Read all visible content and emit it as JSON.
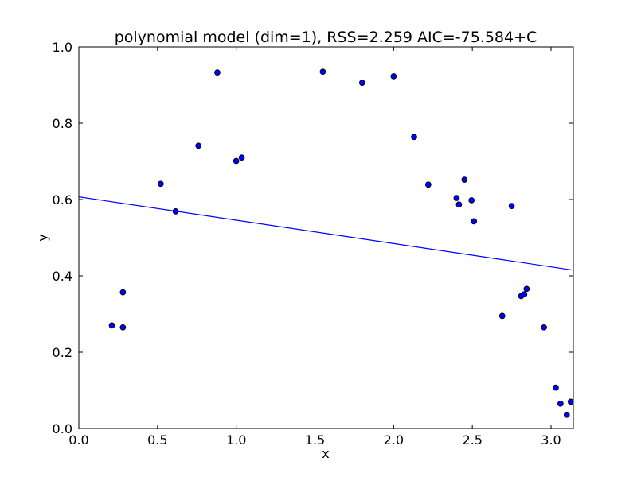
{
  "chart_data": {
    "type": "scatter",
    "title": "polynomial model (dim=1), RSS=2.259 AIC=-75.584+C",
    "xlabel": "x",
    "ylabel": "y",
    "xlim": [
      0.0,
      3.1416
    ],
    "ylim": [
      0.0,
      1.0
    ],
    "xticks": [
      0.0,
      0.5,
      1.0,
      1.5,
      2.0,
      2.5,
      3.0
    ],
    "xtick_labels": [
      "0.0",
      "0.5",
      "1.0",
      "1.5",
      "2.0",
      "2.5",
      "3.0"
    ],
    "yticks": [
      0.0,
      0.2,
      0.4,
      0.6,
      0.8,
      1.0
    ],
    "ytick_labels": [
      "0.0",
      "0.2",
      "0.4",
      "0.6",
      "0.8",
      "1.0"
    ],
    "grid": false,
    "colors": {
      "points": "#0000ff",
      "line": "#0000ff",
      "point_edge": "#000000"
    },
    "points": [
      {
        "x": 0.21,
        "y": 0.27
      },
      {
        "x": 0.28,
        "y": 0.265
      },
      {
        "x": 0.28,
        "y": 0.357
      },
      {
        "x": 0.52,
        "y": 0.641
      },
      {
        "x": 0.615,
        "y": 0.569
      },
      {
        "x": 0.76,
        "y": 0.741
      },
      {
        "x": 0.88,
        "y": 0.933
      },
      {
        "x": 1.0,
        "y": 0.701
      },
      {
        "x": 1.035,
        "y": 0.71
      },
      {
        "x": 1.55,
        "y": 0.935
      },
      {
        "x": 1.8,
        "y": 0.906
      },
      {
        "x": 2.0,
        "y": 0.923
      },
      {
        "x": 2.13,
        "y": 0.764
      },
      {
        "x": 2.22,
        "y": 0.639
      },
      {
        "x": 2.4,
        "y": 0.604
      },
      {
        "x": 2.415,
        "y": 0.587
      },
      {
        "x": 2.45,
        "y": 0.652
      },
      {
        "x": 2.495,
        "y": 0.598
      },
      {
        "x": 2.51,
        "y": 0.543
      },
      {
        "x": 2.69,
        "y": 0.295
      },
      {
        "x": 2.75,
        "y": 0.583
      },
      {
        "x": 2.81,
        "y": 0.347
      },
      {
        "x": 2.83,
        "y": 0.352
      },
      {
        "x": 2.845,
        "y": 0.366
      },
      {
        "x": 2.955,
        "y": 0.265
      },
      {
        "x": 3.03,
        "y": 0.107
      },
      {
        "x": 3.06,
        "y": 0.065
      },
      {
        "x": 3.1,
        "y": 0.036
      },
      {
        "x": 3.125,
        "y": 0.07
      }
    ],
    "fit_line": {
      "x": [
        0.0,
        3.1416
      ],
      "y": [
        0.607,
        0.415
      ]
    }
  }
}
